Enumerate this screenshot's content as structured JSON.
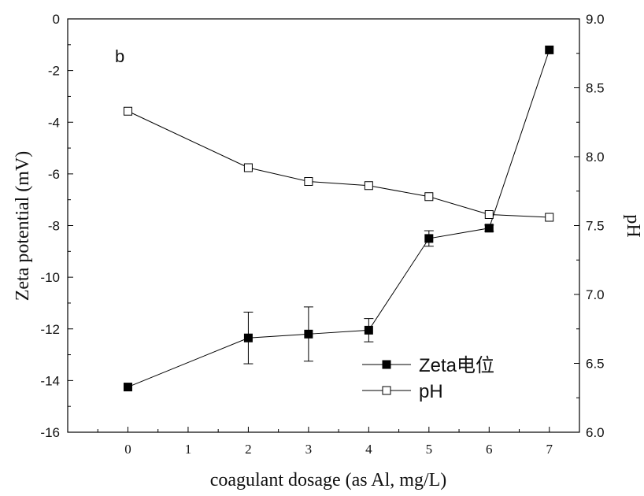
{
  "chart_data": {
    "type": "line",
    "panel_label": "b",
    "xlabel": "coagulant dosage (as Al, mg/L)",
    "ylabel_left": "Zeta potential (mV)",
    "ylabel_right": "pH",
    "xlim": [
      -1,
      7.5
    ],
    "x_ticks": [
      "0",
      "1",
      "2",
      "3",
      "4",
      "5",
      "6",
      "7"
    ],
    "y_left_lim": [
      -16,
      0
    ],
    "y_left_ticks": [
      "-16",
      "-14",
      "-12",
      "-10",
      "-8",
      "-6",
      "-4",
      "-2",
      "0"
    ],
    "y_right_lim": [
      6.0,
      9.0
    ],
    "y_right_ticks": [
      "6.0",
      "6.5",
      "7.0",
      "7.5",
      "8.0",
      "8.5",
      "9.0"
    ],
    "legend_position": "lower-right",
    "series": [
      {
        "name": "Zeta电位",
        "axis": "left",
        "marker": "filled-square",
        "x": [
          0,
          2,
          3,
          4,
          5,
          6,
          7
        ],
        "y": [
          -14.25,
          -12.35,
          -12.2,
          -12.05,
          -8.5,
          -8.1,
          -1.2
        ],
        "error": [
          0,
          1.0,
          1.05,
          0.45,
          0.3,
          0.12,
          0
        ]
      },
      {
        "name": "pH",
        "axis": "right",
        "marker": "open-square",
        "x": [
          0,
          2,
          3,
          4,
          5,
          6,
          7
        ],
        "y": [
          8.33,
          7.92,
          7.82,
          7.79,
          7.71,
          7.58,
          7.56
        ]
      }
    ]
  }
}
